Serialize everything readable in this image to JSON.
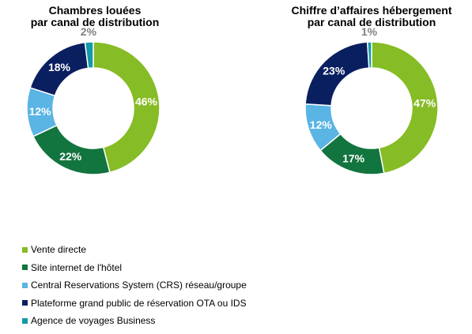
{
  "colors": {
    "vente_directe": "#86bc25",
    "site_internet": "#12743e",
    "crs": "#5ab4e4",
    "plateforme": "#0a1f60",
    "agence": "#1399a8"
  },
  "chart_data": [
    {
      "type": "pie",
      "title": "Chambres louées par canal de distribution",
      "title_lines": [
        "Chambres louées",
        "par canal de distribution"
      ],
      "categories": [
        "Vente directe",
        "Site internet de l'hôtel",
        "Central Reservations System (CRS) réseau/groupe",
        "Plateforme grand public de réservation OTA ou IDS",
        "Agence de voyages Business"
      ],
      "values": [
        46,
        22,
        12,
        18,
        2
      ],
      "labels": [
        "46%",
        "22%",
        "12%",
        "18%",
        "2%"
      ],
      "donut": true
    },
    {
      "type": "pie",
      "title": "Chiffre d’affaires hébergement par canal de distribution",
      "title_lines": [
        "Chiffre d’affaires hébergement",
        "par canal de distribution"
      ],
      "categories": [
        "Vente directe",
        "Site internet de l'hôtel",
        "Central Reservations System (CRS) réseau/groupe",
        "Plateforme grand public de réservation OTA ou IDS",
        "Agence de voyages Business"
      ],
      "values": [
        47,
        17,
        12,
        23,
        1
      ],
      "labels": [
        "47%",
        "17%",
        "12%",
        "23%",
        "1%"
      ],
      "donut": true
    }
  ],
  "legend": [
    {
      "label": "Vente directe",
      "color": "#86bc25"
    },
    {
      "label": "Site internet de l'hôtel",
      "color": "#12743e"
    },
    {
      "label": "Central Reservations System (CRS) réseau/groupe",
      "color": "#5ab4e4"
    },
    {
      "label": "Plateforme grand public de réservation OTA ou IDS",
      "color": "#0a1f60"
    },
    {
      "label": "Agence de voyages Business",
      "color": "#1399a8"
    }
  ]
}
